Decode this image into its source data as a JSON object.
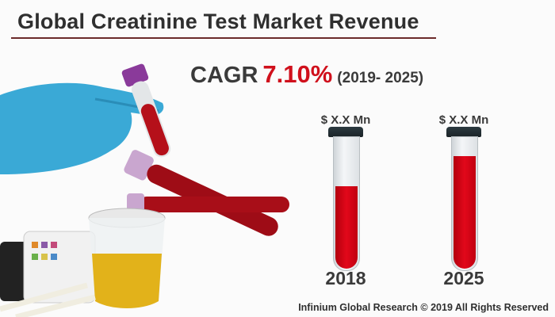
{
  "title": "Global Creatinine Test Market Revenue",
  "cagr": {
    "label": "CAGR",
    "value": "7.10%",
    "period": "(2019- 2025)"
  },
  "bars": [
    {
      "year": "2018",
      "amount": "$ X.X Mn",
      "fill_level": 0.65
    },
    {
      "year": "2025",
      "amount": "$ X.X Mn",
      "fill_level": 0.89
    }
  ],
  "colors": {
    "accent": "#d0101c",
    "title_rule": "#6b2a2a",
    "text": "#3a3a3a"
  },
  "footer": "Infinium Global Research © 2019 All Rights Reserved"
}
